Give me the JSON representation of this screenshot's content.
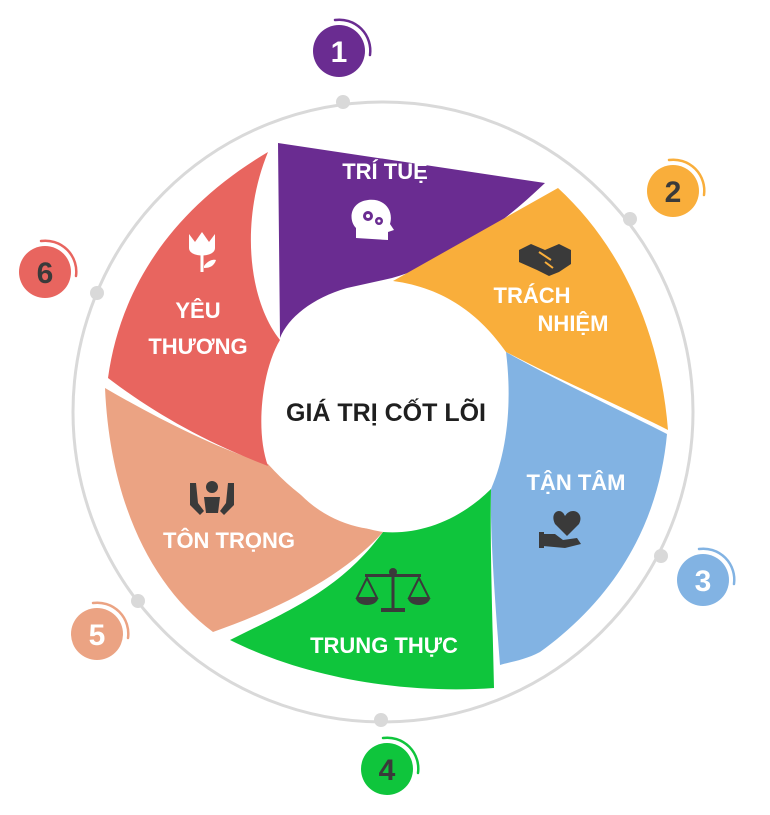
{
  "center_title": "GIÁ TRỊ CỐT LÕI",
  "segments": [
    {
      "number": "1",
      "label_lines": [
        "TRÍ TUỆ"
      ],
      "icon": "brain-gears-icon",
      "color": "#6A2C91",
      "badge_text_color": "#ffffff",
      "badge_arc_color": "#6A2C91"
    },
    {
      "number": "2",
      "label_lines": [
        "TRÁCH",
        "NHIỆM"
      ],
      "icon": "handshake-icon",
      "color": "#F9AE3B",
      "badge_text_color": "#3a3a3a",
      "badge_arc_color": "#F9AE3B"
    },
    {
      "number": "3",
      "label_lines": [
        "TẬN TÂM"
      ],
      "icon": "heart-in-hand-icon",
      "color": "#82B3E3",
      "badge_text_color": "#ffffff",
      "badge_arc_color": "#82B3E3"
    },
    {
      "number": "4",
      "label_lines": [
        "TRUNG THỰC"
      ],
      "icon": "balance-scale-icon",
      "color": "#0FC53C",
      "badge_text_color": "#3a3a3a",
      "badge_arc_color": "#0FC53C"
    },
    {
      "number": "5",
      "label_lines": [
        "TÔN TRỌNG"
      ],
      "icon": "raised-hands-person-icon",
      "color": "#EBA383",
      "badge_text_color": "#ffffff",
      "badge_arc_color": "#EBA383"
    },
    {
      "number": "6",
      "label_lines": [
        "YÊU",
        "THƯƠNG"
      ],
      "icon": "tulip-flower-icon",
      "color": "#E8655F",
      "badge_text_color": "#3a3a3a",
      "badge_arc_color": "#E8655F"
    }
  ],
  "ring_color": "#D9D9D9",
  "icon_color": "#3a3a3a"
}
